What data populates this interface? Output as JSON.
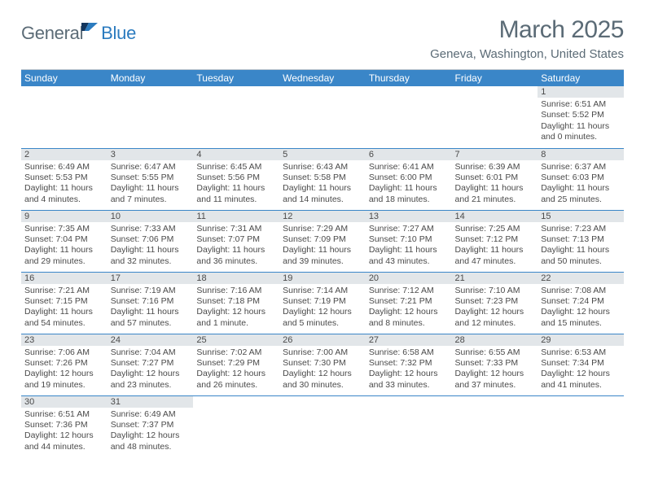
{
  "branding": {
    "logo_text_1": "General",
    "logo_text_2": "Blue",
    "logo_color_1": "#5b6b76",
    "logo_color_2": "#2b7bbf",
    "logo_icon_color": "#2b7bbf"
  },
  "header": {
    "month_title": "March 2025",
    "location": "Geneva, Washington, United States"
  },
  "styling": {
    "header_bg": "#3a86c8",
    "header_text": "#ffffff",
    "daynum_bg": "#e2e6e9",
    "cell_border": "#3a86c8",
    "text_color": "#4a4a4a",
    "page_bg": "#ffffff"
  },
  "weekdays": [
    "Sunday",
    "Monday",
    "Tuesday",
    "Wednesday",
    "Thursday",
    "Friday",
    "Saturday"
  ],
  "weeks": [
    [
      {
        "day": "",
        "sunrise": "",
        "sunset": "",
        "daylight": ""
      },
      {
        "day": "",
        "sunrise": "",
        "sunset": "",
        "daylight": ""
      },
      {
        "day": "",
        "sunrise": "",
        "sunset": "",
        "daylight": ""
      },
      {
        "day": "",
        "sunrise": "",
        "sunset": "",
        "daylight": ""
      },
      {
        "day": "",
        "sunrise": "",
        "sunset": "",
        "daylight": ""
      },
      {
        "day": "",
        "sunrise": "",
        "sunset": "",
        "daylight": ""
      },
      {
        "day": "1",
        "sunrise": "Sunrise: 6:51 AM",
        "sunset": "Sunset: 5:52 PM",
        "daylight": "Daylight: 11 hours and 0 minutes."
      }
    ],
    [
      {
        "day": "2",
        "sunrise": "Sunrise: 6:49 AM",
        "sunset": "Sunset: 5:53 PM",
        "daylight": "Daylight: 11 hours and 4 minutes."
      },
      {
        "day": "3",
        "sunrise": "Sunrise: 6:47 AM",
        "sunset": "Sunset: 5:55 PM",
        "daylight": "Daylight: 11 hours and 7 minutes."
      },
      {
        "day": "4",
        "sunrise": "Sunrise: 6:45 AM",
        "sunset": "Sunset: 5:56 PM",
        "daylight": "Daylight: 11 hours and 11 minutes."
      },
      {
        "day": "5",
        "sunrise": "Sunrise: 6:43 AM",
        "sunset": "Sunset: 5:58 PM",
        "daylight": "Daylight: 11 hours and 14 minutes."
      },
      {
        "day": "6",
        "sunrise": "Sunrise: 6:41 AM",
        "sunset": "Sunset: 6:00 PM",
        "daylight": "Daylight: 11 hours and 18 minutes."
      },
      {
        "day": "7",
        "sunrise": "Sunrise: 6:39 AM",
        "sunset": "Sunset: 6:01 PM",
        "daylight": "Daylight: 11 hours and 21 minutes."
      },
      {
        "day": "8",
        "sunrise": "Sunrise: 6:37 AM",
        "sunset": "Sunset: 6:03 PM",
        "daylight": "Daylight: 11 hours and 25 minutes."
      }
    ],
    [
      {
        "day": "9",
        "sunrise": "Sunrise: 7:35 AM",
        "sunset": "Sunset: 7:04 PM",
        "daylight": "Daylight: 11 hours and 29 minutes."
      },
      {
        "day": "10",
        "sunrise": "Sunrise: 7:33 AM",
        "sunset": "Sunset: 7:06 PM",
        "daylight": "Daylight: 11 hours and 32 minutes."
      },
      {
        "day": "11",
        "sunrise": "Sunrise: 7:31 AM",
        "sunset": "Sunset: 7:07 PM",
        "daylight": "Daylight: 11 hours and 36 minutes."
      },
      {
        "day": "12",
        "sunrise": "Sunrise: 7:29 AM",
        "sunset": "Sunset: 7:09 PM",
        "daylight": "Daylight: 11 hours and 39 minutes."
      },
      {
        "day": "13",
        "sunrise": "Sunrise: 7:27 AM",
        "sunset": "Sunset: 7:10 PM",
        "daylight": "Daylight: 11 hours and 43 minutes."
      },
      {
        "day": "14",
        "sunrise": "Sunrise: 7:25 AM",
        "sunset": "Sunset: 7:12 PM",
        "daylight": "Daylight: 11 hours and 47 minutes."
      },
      {
        "day": "15",
        "sunrise": "Sunrise: 7:23 AM",
        "sunset": "Sunset: 7:13 PM",
        "daylight": "Daylight: 11 hours and 50 minutes."
      }
    ],
    [
      {
        "day": "16",
        "sunrise": "Sunrise: 7:21 AM",
        "sunset": "Sunset: 7:15 PM",
        "daylight": "Daylight: 11 hours and 54 minutes."
      },
      {
        "day": "17",
        "sunrise": "Sunrise: 7:19 AM",
        "sunset": "Sunset: 7:16 PM",
        "daylight": "Daylight: 11 hours and 57 minutes."
      },
      {
        "day": "18",
        "sunrise": "Sunrise: 7:16 AM",
        "sunset": "Sunset: 7:18 PM",
        "daylight": "Daylight: 12 hours and 1 minute."
      },
      {
        "day": "19",
        "sunrise": "Sunrise: 7:14 AM",
        "sunset": "Sunset: 7:19 PM",
        "daylight": "Daylight: 12 hours and 5 minutes."
      },
      {
        "day": "20",
        "sunrise": "Sunrise: 7:12 AM",
        "sunset": "Sunset: 7:21 PM",
        "daylight": "Daylight: 12 hours and 8 minutes."
      },
      {
        "day": "21",
        "sunrise": "Sunrise: 7:10 AM",
        "sunset": "Sunset: 7:23 PM",
        "daylight": "Daylight: 12 hours and 12 minutes."
      },
      {
        "day": "22",
        "sunrise": "Sunrise: 7:08 AM",
        "sunset": "Sunset: 7:24 PM",
        "daylight": "Daylight: 12 hours and 15 minutes."
      }
    ],
    [
      {
        "day": "23",
        "sunrise": "Sunrise: 7:06 AM",
        "sunset": "Sunset: 7:26 PM",
        "daylight": "Daylight: 12 hours and 19 minutes."
      },
      {
        "day": "24",
        "sunrise": "Sunrise: 7:04 AM",
        "sunset": "Sunset: 7:27 PM",
        "daylight": "Daylight: 12 hours and 23 minutes."
      },
      {
        "day": "25",
        "sunrise": "Sunrise: 7:02 AM",
        "sunset": "Sunset: 7:29 PM",
        "daylight": "Daylight: 12 hours and 26 minutes."
      },
      {
        "day": "26",
        "sunrise": "Sunrise: 7:00 AM",
        "sunset": "Sunset: 7:30 PM",
        "daylight": "Daylight: 12 hours and 30 minutes."
      },
      {
        "day": "27",
        "sunrise": "Sunrise: 6:58 AM",
        "sunset": "Sunset: 7:32 PM",
        "daylight": "Daylight: 12 hours and 33 minutes."
      },
      {
        "day": "28",
        "sunrise": "Sunrise: 6:55 AM",
        "sunset": "Sunset: 7:33 PM",
        "daylight": "Daylight: 12 hours and 37 minutes."
      },
      {
        "day": "29",
        "sunrise": "Sunrise: 6:53 AM",
        "sunset": "Sunset: 7:34 PM",
        "daylight": "Daylight: 12 hours and 41 minutes."
      }
    ],
    [
      {
        "day": "30",
        "sunrise": "Sunrise: 6:51 AM",
        "sunset": "Sunset: 7:36 PM",
        "daylight": "Daylight: 12 hours and 44 minutes."
      },
      {
        "day": "31",
        "sunrise": "Sunrise: 6:49 AM",
        "sunset": "Sunset: 7:37 PM",
        "daylight": "Daylight: 12 hours and 48 minutes."
      },
      {
        "day": "",
        "sunrise": "",
        "sunset": "",
        "daylight": ""
      },
      {
        "day": "",
        "sunrise": "",
        "sunset": "",
        "daylight": ""
      },
      {
        "day": "",
        "sunrise": "",
        "sunset": "",
        "daylight": ""
      },
      {
        "day": "",
        "sunrise": "",
        "sunset": "",
        "daylight": ""
      },
      {
        "day": "",
        "sunrise": "",
        "sunset": "",
        "daylight": ""
      }
    ]
  ]
}
